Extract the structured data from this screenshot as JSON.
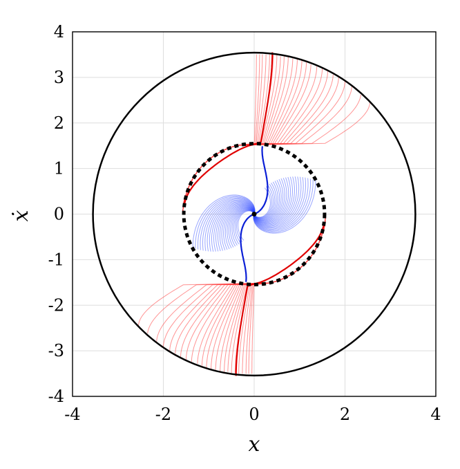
{
  "chart_data": {
    "type": "line",
    "title": "",
    "xlabel": "x",
    "ylabel": "ẋ",
    "xlim": [
      -4,
      4
    ],
    "ylim": [
      -4,
      4
    ],
    "grid": true,
    "xticks": [
      -4,
      -2,
      0,
      2,
      4
    ],
    "yticks": [
      4,
      3,
      2,
      1,
      0,
      -1,
      -2,
      -3,
      -4
    ],
    "xtick_labels": [
      "-4",
      "-2",
      "0",
      "2",
      "4"
    ],
    "ytick_labels": [
      "4",
      "3",
      "2",
      "1",
      "0",
      "-1",
      "-2",
      "-3",
      "-4"
    ],
    "series": [
      {
        "role": "outer-circle",
        "shape": "circle",
        "center": [
          0,
          0
        ],
        "radius": 3.55,
        "color": "#000000",
        "style": "solid"
      },
      {
        "role": "inner-limit-circle",
        "shape": "circle",
        "center": [
          0,
          0
        ],
        "radius": 1.55,
        "color": "#000000",
        "style": "dashed"
      },
      {
        "role": "equilibrium",
        "shape": "point",
        "x": 0,
        "y": 0,
        "color": "#000000"
      },
      {
        "role": "outer-trajectories",
        "color": "#ff3b3b",
        "x_at_top": [
          0.05,
          0.12,
          0.18,
          0.26,
          0.34,
          0.42,
          0.5,
          0.58,
          0.66,
          0.75,
          0.85,
          0.95,
          1.05,
          1.15,
          1.25,
          1.38,
          1.5,
          1.62,
          1.74,
          1.86,
          2.0,
          2.15,
          2.35,
          2.55
        ]
      },
      {
        "role": "inner-trajectories",
        "color": "#1e3cff",
        "r0": [
          1.54,
          1.5,
          1.46,
          1.42,
          1.38,
          1.34,
          1.3,
          1.26,
          1.22,
          1.18,
          1.14,
          1.1,
          1.06,
          1.02,
          0.98,
          0.94,
          0.9,
          0.86,
          0.82,
          0.78,
          0.74,
          0.7,
          0.66,
          0.62
        ]
      }
    ]
  }
}
